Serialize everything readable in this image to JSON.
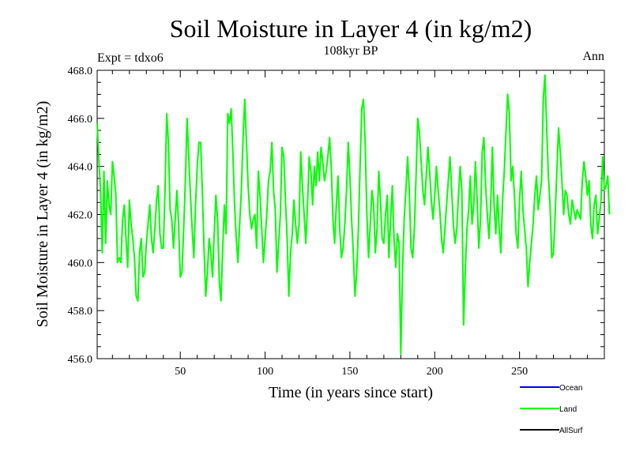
{
  "chart_data": {
    "type": "line",
    "title": "Soil Moisture in Layer 4 (in kg/m2)",
    "subtitle": "108kyr BP",
    "experiment_label": "Expt = tdxo6",
    "period_label": "Ann",
    "xlabel": "Time (in years since start)",
    "ylabel": "Soil Moisture in Layer 4 (in kg/m2)",
    "xlim": [
      1,
      300
    ],
    "ylim": [
      456,
      468
    ],
    "x_ticks": [
      50,
      100,
      150,
      200,
      250
    ],
    "x_tick_labels": [
      "50",
      "100",
      "150",
      "200",
      "250"
    ],
    "y_ticks": [
      456,
      458,
      460,
      462,
      464,
      466,
      468
    ],
    "y_tick_labels": [
      "456.0",
      "458.0",
      "460.0",
      "462.0",
      "464.0",
      "466.0",
      "468.0"
    ],
    "legend_position": "bottom-right",
    "series": [
      {
        "name": "Ocean",
        "color": "#0000ff",
        "values": []
      },
      {
        "name": "Land",
        "color": "#00ff00",
        "x_start": 1,
        "x_step": 1,
        "values": [
          465.8,
          464.2,
          463.0,
          460.4,
          463.8,
          460.8,
          463.4,
          462.4,
          462.0,
          464.2,
          463.6,
          462.8,
          460.0,
          460.2,
          460.0,
          461.8,
          462.4,
          461.0,
          459.8,
          462.6,
          461.6,
          461.0,
          460.2,
          458.6,
          458.4,
          460.4,
          461.0,
          459.4,
          459.6,
          460.8,
          461.6,
          462.4,
          461.0,
          460.4,
          461.4,
          462.6,
          463.2,
          461.2,
          460.6,
          460.6,
          463.0,
          466.2,
          465.0,
          462.2,
          461.8,
          460.6,
          461.8,
          463.0,
          461.6,
          459.4,
          459.6,
          461.4,
          463.4,
          466.0,
          464.4,
          462.8,
          461.4,
          460.2,
          462.4,
          464.0,
          465.0,
          465.0,
          463.0,
          460.6,
          458.6,
          459.6,
          461.0,
          460.4,
          459.4,
          461.2,
          462.8,
          461.8,
          459.2,
          458.4,
          460.6,
          462.4,
          461.2,
          466.2,
          465.8,
          466.4,
          464.6,
          462.4,
          461.0,
          460.0,
          461.6,
          463.0,
          465.2,
          466.8,
          465.0,
          463.2,
          462.0,
          461.4,
          461.8,
          462.0,
          460.6,
          463.8,
          462.8,
          461.4,
          460.0,
          461.0,
          462.0,
          463.4,
          463.8,
          465.0,
          463.0,
          462.2,
          459.6,
          460.8,
          462.0,
          464.8,
          464.4,
          462.6,
          461.0,
          458.6,
          460.4,
          461.2,
          462.6,
          461.6,
          460.8,
          461.6,
          464.6,
          463.2,
          462.0,
          460.8,
          462.4,
          464.4,
          463.8,
          462.4,
          464.0,
          463.2,
          464.6,
          463.4,
          464.8,
          464.2,
          463.4,
          463.8,
          464.4,
          465.2,
          464.0,
          461.8,
          460.8,
          462.4,
          463.6,
          461.4,
          460.2,
          460.6,
          461.6,
          463.0,
          465.0,
          463.6,
          461.8,
          460.4,
          458.6,
          459.6,
          461.4,
          464.0,
          466.4,
          466.8,
          465.0,
          462.0,
          460.2,
          461.6,
          463.0,
          462.4,
          460.4,
          461.4,
          463.8,
          462.6,
          461.0,
          460.8,
          462.0,
          462.8,
          460.2,
          461.8,
          463.2,
          461.0,
          459.8,
          461.2,
          460.8,
          456.2,
          459.6,
          461.8,
          463.0,
          464.4,
          463.0,
          460.6,
          460.2,
          461.4,
          463.6,
          466.0,
          465.4,
          464.2,
          463.0,
          462.4,
          463.6,
          464.8,
          463.8,
          462.6,
          461.8,
          462.8,
          464.0,
          463.0,
          462.2,
          461.0,
          460.4,
          461.4,
          462.4,
          463.4,
          464.4,
          463.0,
          461.6,
          460.8,
          461.4,
          462.8,
          464.0,
          463.0,
          457.4,
          459.6,
          461.4,
          462.2,
          463.6,
          461.6,
          462.4,
          464.2,
          462.6,
          460.6,
          461.8,
          464.6,
          465.2,
          463.2,
          462.0,
          461.0,
          462.4,
          464.8,
          462.4,
          461.2,
          462.8,
          461.4,
          460.4,
          462.6,
          463.8,
          465.4,
          467.0,
          466.2,
          463.4,
          464.0,
          462.8,
          461.2,
          460.6,
          462.6,
          463.8,
          462.2,
          461.4,
          460.6,
          459.0,
          460.0,
          460.8,
          461.6,
          462.8,
          463.6,
          462.2,
          462.8,
          463.4,
          466.8,
          467.8,
          465.6,
          463.6,
          462.4,
          460.2,
          460.4,
          462.0,
          463.8,
          465.6,
          464.6,
          463.4,
          462.0,
          463.0,
          462.8,
          462.0,
          461.6,
          462.6,
          462.2,
          461.8,
          462.2,
          462.0,
          461.8,
          463.4,
          464.2,
          463.6,
          462.8,
          463.4,
          461.6,
          461.0,
          462.4,
          462.8,
          461.2,
          461.8,
          462.6,
          464.4,
          463.0,
          463.2,
          463.6,
          462.0
        ]
      },
      {
        "name": "AllSurf",
        "color": "#000000",
        "values": []
      }
    ]
  }
}
